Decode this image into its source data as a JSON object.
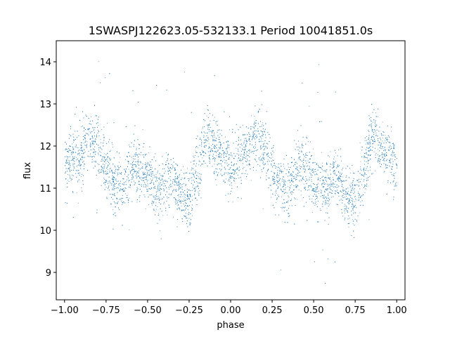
{
  "chart_data": {
    "type": "scatter",
    "title": "1SWASPJ122623.05-532133.1 Period 10041851.0s",
    "xlabel": "phase",
    "ylabel": "flux",
    "xlim": [
      -1.05,
      1.05
    ],
    "ylim": [
      8.35,
      14.5
    ],
    "x_ticks": [
      -1.0,
      -0.75,
      -0.5,
      -0.25,
      0.0,
      0.25,
      0.5,
      0.75,
      1.0
    ],
    "x_tick_labels": [
      "−1.00",
      "−0.75",
      "−0.50",
      "−0.25",
      "0.00",
      "0.25",
      "0.50",
      "0.75",
      "1.00"
    ],
    "y_ticks": [
      9,
      10,
      11,
      12,
      13,
      14
    ],
    "y_tick_labels": [
      "9",
      "10",
      "11",
      "12",
      "13",
      "14"
    ],
    "grid": false,
    "legend": "none",
    "marker_color": "#1f77b4",
    "series": [
      {
        "profile_phase": [
          -1.0,
          -0.95,
          -0.9,
          -0.86,
          -0.82,
          -0.78,
          -0.74,
          -0.7,
          -0.66,
          -0.62,
          -0.58,
          -0.54,
          -0.5,
          -0.46,
          -0.42,
          -0.38,
          -0.34,
          -0.3,
          -0.26,
          -0.22,
          -0.18,
          -0.14,
          -0.1,
          -0.06,
          -0.02,
          0.0
        ],
        "profile_flux": [
          11.5,
          11.7,
          11.8,
          12.2,
          12.1,
          11.8,
          11.4,
          11.1,
          11.0,
          11.3,
          11.6,
          11.4,
          11.2,
          11.0,
          10.9,
          11.3,
          11.2,
          10.8,
          10.6,
          11.1,
          11.7,
          12.3,
          12.0,
          11.8,
          11.6,
          11.5
        ]
      }
    ]
  }
}
